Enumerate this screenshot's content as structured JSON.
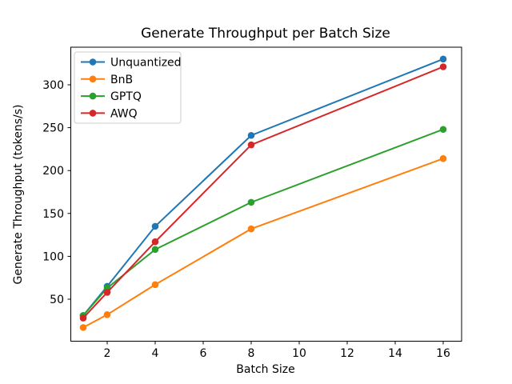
{
  "chart_data": {
    "type": "line",
    "title": "Generate Throughput per Batch Size",
    "xlabel": "Batch Size",
    "ylabel": "Generate Throughput (tokens/s)",
    "x": [
      1,
      2,
      4,
      8,
      16
    ],
    "series": [
      {
        "name": "Unquantized",
        "color": "#1f77b4",
        "values": [
          31,
          65,
          135,
          241,
          330
        ]
      },
      {
        "name": "BnB",
        "color": "#ff7f0e",
        "values": [
          17,
          32,
          67,
          132,
          214
        ]
      },
      {
        "name": "GPTQ",
        "color": "#2ca02c",
        "values": [
          31,
          63,
          108,
          163,
          248
        ]
      },
      {
        "name": "AWQ",
        "color": "#d62728",
        "values": [
          28,
          58,
          117,
          230,
          321
        ]
      }
    ],
    "xticks": [
      2,
      4,
      6,
      8,
      10,
      12,
      14,
      16
    ],
    "yticks": [
      50,
      100,
      150,
      200,
      250,
      300
    ],
    "xlim": [
      0.5,
      16.8
    ],
    "ylim": [
      0,
      345
    ],
    "grid": false,
    "marker": "circle",
    "legend": {
      "position": "upper-left",
      "entries": [
        "Unquantized",
        "BnB",
        "GPTQ",
        "AWQ"
      ]
    },
    "axis_color": "#000000",
    "background_color": "#ffffff"
  }
}
